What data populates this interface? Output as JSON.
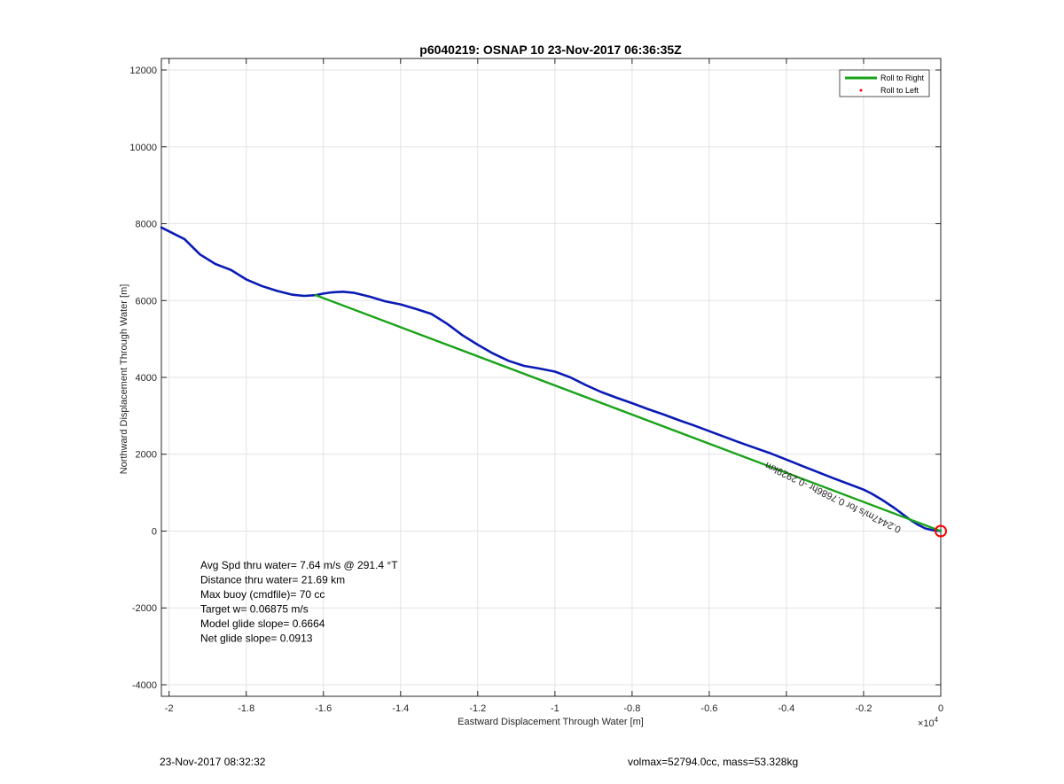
{
  "chart_data": {
    "type": "line",
    "title": "p6040219: OSNAP 10 23-Nov-2017 06:36:35Z",
    "xlabel": "Eastward Displacement Through Water [m]",
    "ylabel": "Northward Displacement Through Water [m]",
    "x_exponent_label": "×10",
    "x_exponent_power": "4",
    "xlim": [
      -20200,
      0
    ],
    "ylim": [
      -4300,
      12300
    ],
    "x_ticks": [
      -20000,
      -18000,
      -16000,
      -14000,
      -12000,
      -10000,
      -8000,
      -6000,
      -4000,
      -2000,
      0
    ],
    "x_tick_labels": [
      "-2",
      "-1.8",
      "-1.6",
      "-1.4",
      "-1.2",
      "-1",
      "-0.8",
      "-0.6",
      "-0.4",
      "-0.2",
      "0"
    ],
    "y_ticks": [
      -4000,
      -2000,
      0,
      2000,
      4000,
      6000,
      8000,
      10000,
      12000
    ],
    "y_tick_labels": [
      "-4000",
      "-2000",
      "0",
      "2000",
      "4000",
      "6000",
      "8000",
      "10000",
      "12000"
    ],
    "grid": true,
    "legend_position": "top-right",
    "legend": [
      {
        "label": "Roll to Right",
        "color": "#1aa31a",
        "marker": "line"
      },
      {
        "label": "Roll to Left",
        "color": "#ff0000",
        "marker": "dot"
      }
    ],
    "series": [
      {
        "color": "#0a1bb5",
        "x": [
          -20200,
          -20000,
          -19600,
          -19200,
          -18800,
          -18400,
          -18000,
          -17600,
          -17200,
          -16800,
          -16500,
          -16200,
          -16000,
          -15800,
          -15500,
          -15200,
          -14800,
          -14400,
          -14000,
          -13600,
          -13200,
          -12800,
          -12400,
          -12000,
          -11600,
          -11200,
          -10800,
          -10400,
          -10000,
          -9600,
          -9200,
          -8800,
          -8400,
          -8000,
          -7600,
          -7200,
          -6800,
          -6400,
          -6000,
          -5600,
          -5200,
          -4800,
          -4400,
          -4000,
          -3600,
          -3200,
          -2800,
          -2400,
          -2000,
          -1800,
          -1500,
          -1200,
          -1000,
          -800,
          -600,
          -400,
          -200,
          0
        ],
        "y": [
          7900,
          7800,
          7600,
          7200,
          6950,
          6800,
          6550,
          6380,
          6250,
          6150,
          6120,
          6140,
          6180,
          6210,
          6230,
          6200,
          6100,
          5980,
          5900,
          5780,
          5650,
          5400,
          5100,
          4850,
          4620,
          4430,
          4300,
          4230,
          4150,
          4000,
          3800,
          3620,
          3470,
          3330,
          3180,
          3040,
          2890,
          2750,
          2600,
          2450,
          2300,
          2160,
          2020,
          1860,
          1700,
          1540,
          1380,
          1230,
          1080,
          980,
          800,
          600,
          450,
          300,
          170,
          70,
          20,
          0
        ]
      },
      {
        "name": "Roll to Right",
        "color": "#1aa31a",
        "x": [
          -16200,
          0
        ],
        "y": [
          6140,
          0
        ]
      }
    ],
    "annotations": [
      {
        "text": "0.2447m/s for 0.7686hr -0.2929km",
        "x": -4500,
        "y": 1800,
        "rotate": 26,
        "flipped": true
      }
    ],
    "end_marker": {
      "x": 0,
      "y": 0,
      "color": "#ff0000"
    },
    "stats_box": [
      "Avg Spd thru water=  7.64 m/s @ 291.4 °T",
      "Distance thru water= 21.69 km",
      "Max buoy (cmdfile)= 70 cc",
      "Target w= 0.06875 m/s",
      "Model glide slope= 0.6664",
      "Net glide slope= 0.0913"
    ]
  },
  "footer": {
    "left": "23-Nov-2017 08:32:32",
    "right": "volmax=52794.0cc, mass=53.328kg"
  }
}
